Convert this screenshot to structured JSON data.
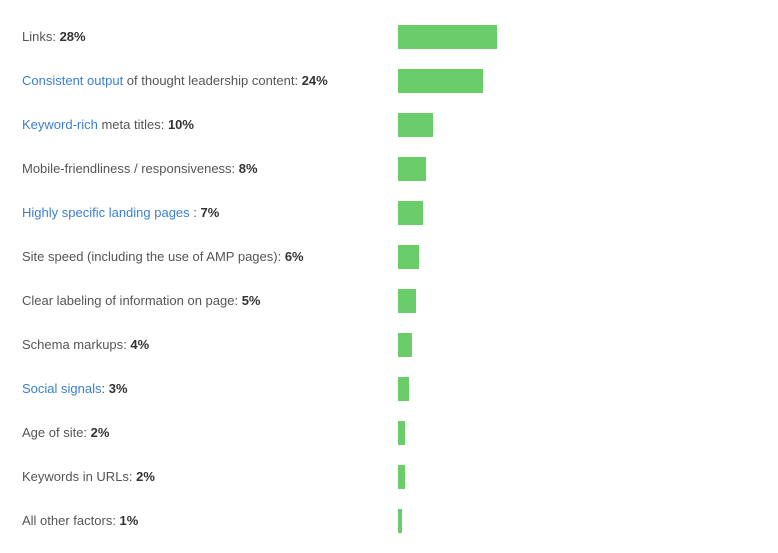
{
  "colors": {
    "bar": "#6acd6a",
    "link_text": "#3a7fd5",
    "label_text": "#555555",
    "value_text": "#333333"
  },
  "chart_data": {
    "type": "bar",
    "orientation": "horizontal",
    "categories": [
      "Links",
      "Consistent output of thought leadership content",
      "Keyword-rich meta titles",
      "Mobile-friendliness / responsiveness",
      "Highly specific landing pages",
      "Site speed (including the use of AMP pages)",
      "Clear labeling of information on page",
      "Schema markups",
      "Social signals",
      "Age of site",
      "Keywords in URLs",
      "All other factors"
    ],
    "values": [
      28,
      24,
      10,
      8,
      7,
      6,
      5,
      4,
      3,
      2,
      2,
      1
    ],
    "unit": "%",
    "grid": false,
    "legend": "none",
    "rows": [
      {
        "link": "",
        "text": "Links: ",
        "value_label": "28%"
      },
      {
        "link": "Consistent output",
        "text": " of thought leadership content: ",
        "value_label": "24%"
      },
      {
        "link": "Keyword-rich",
        "text": " meta titles: ",
        "value_label": "10%"
      },
      {
        "link": "",
        "text": "Mobile-friendliness / responsiveness: ",
        "value_label": "8%"
      },
      {
        "link": "Highly specific landing pages",
        "text": " : ",
        "value_label": "7%"
      },
      {
        "link": "",
        "text": "Site speed (including the use of AMP pages): ",
        "value_label": "6%"
      },
      {
        "link": "",
        "text": "Clear labeling of information on page: ",
        "value_label": "5%"
      },
      {
        "link": "",
        "text": "Schema markups: ",
        "value_label": "4%"
      },
      {
        "link": "Social signals",
        "text": ": ",
        "value_label": "3%"
      },
      {
        "link": "",
        "text": "Age of site: ",
        "value_label": "2%"
      },
      {
        "link": "",
        "text": "Keywords in URLs: ",
        "value_label": "2%"
      },
      {
        "link": "",
        "text": "All other factors: ",
        "value_label": "1%"
      }
    ]
  }
}
